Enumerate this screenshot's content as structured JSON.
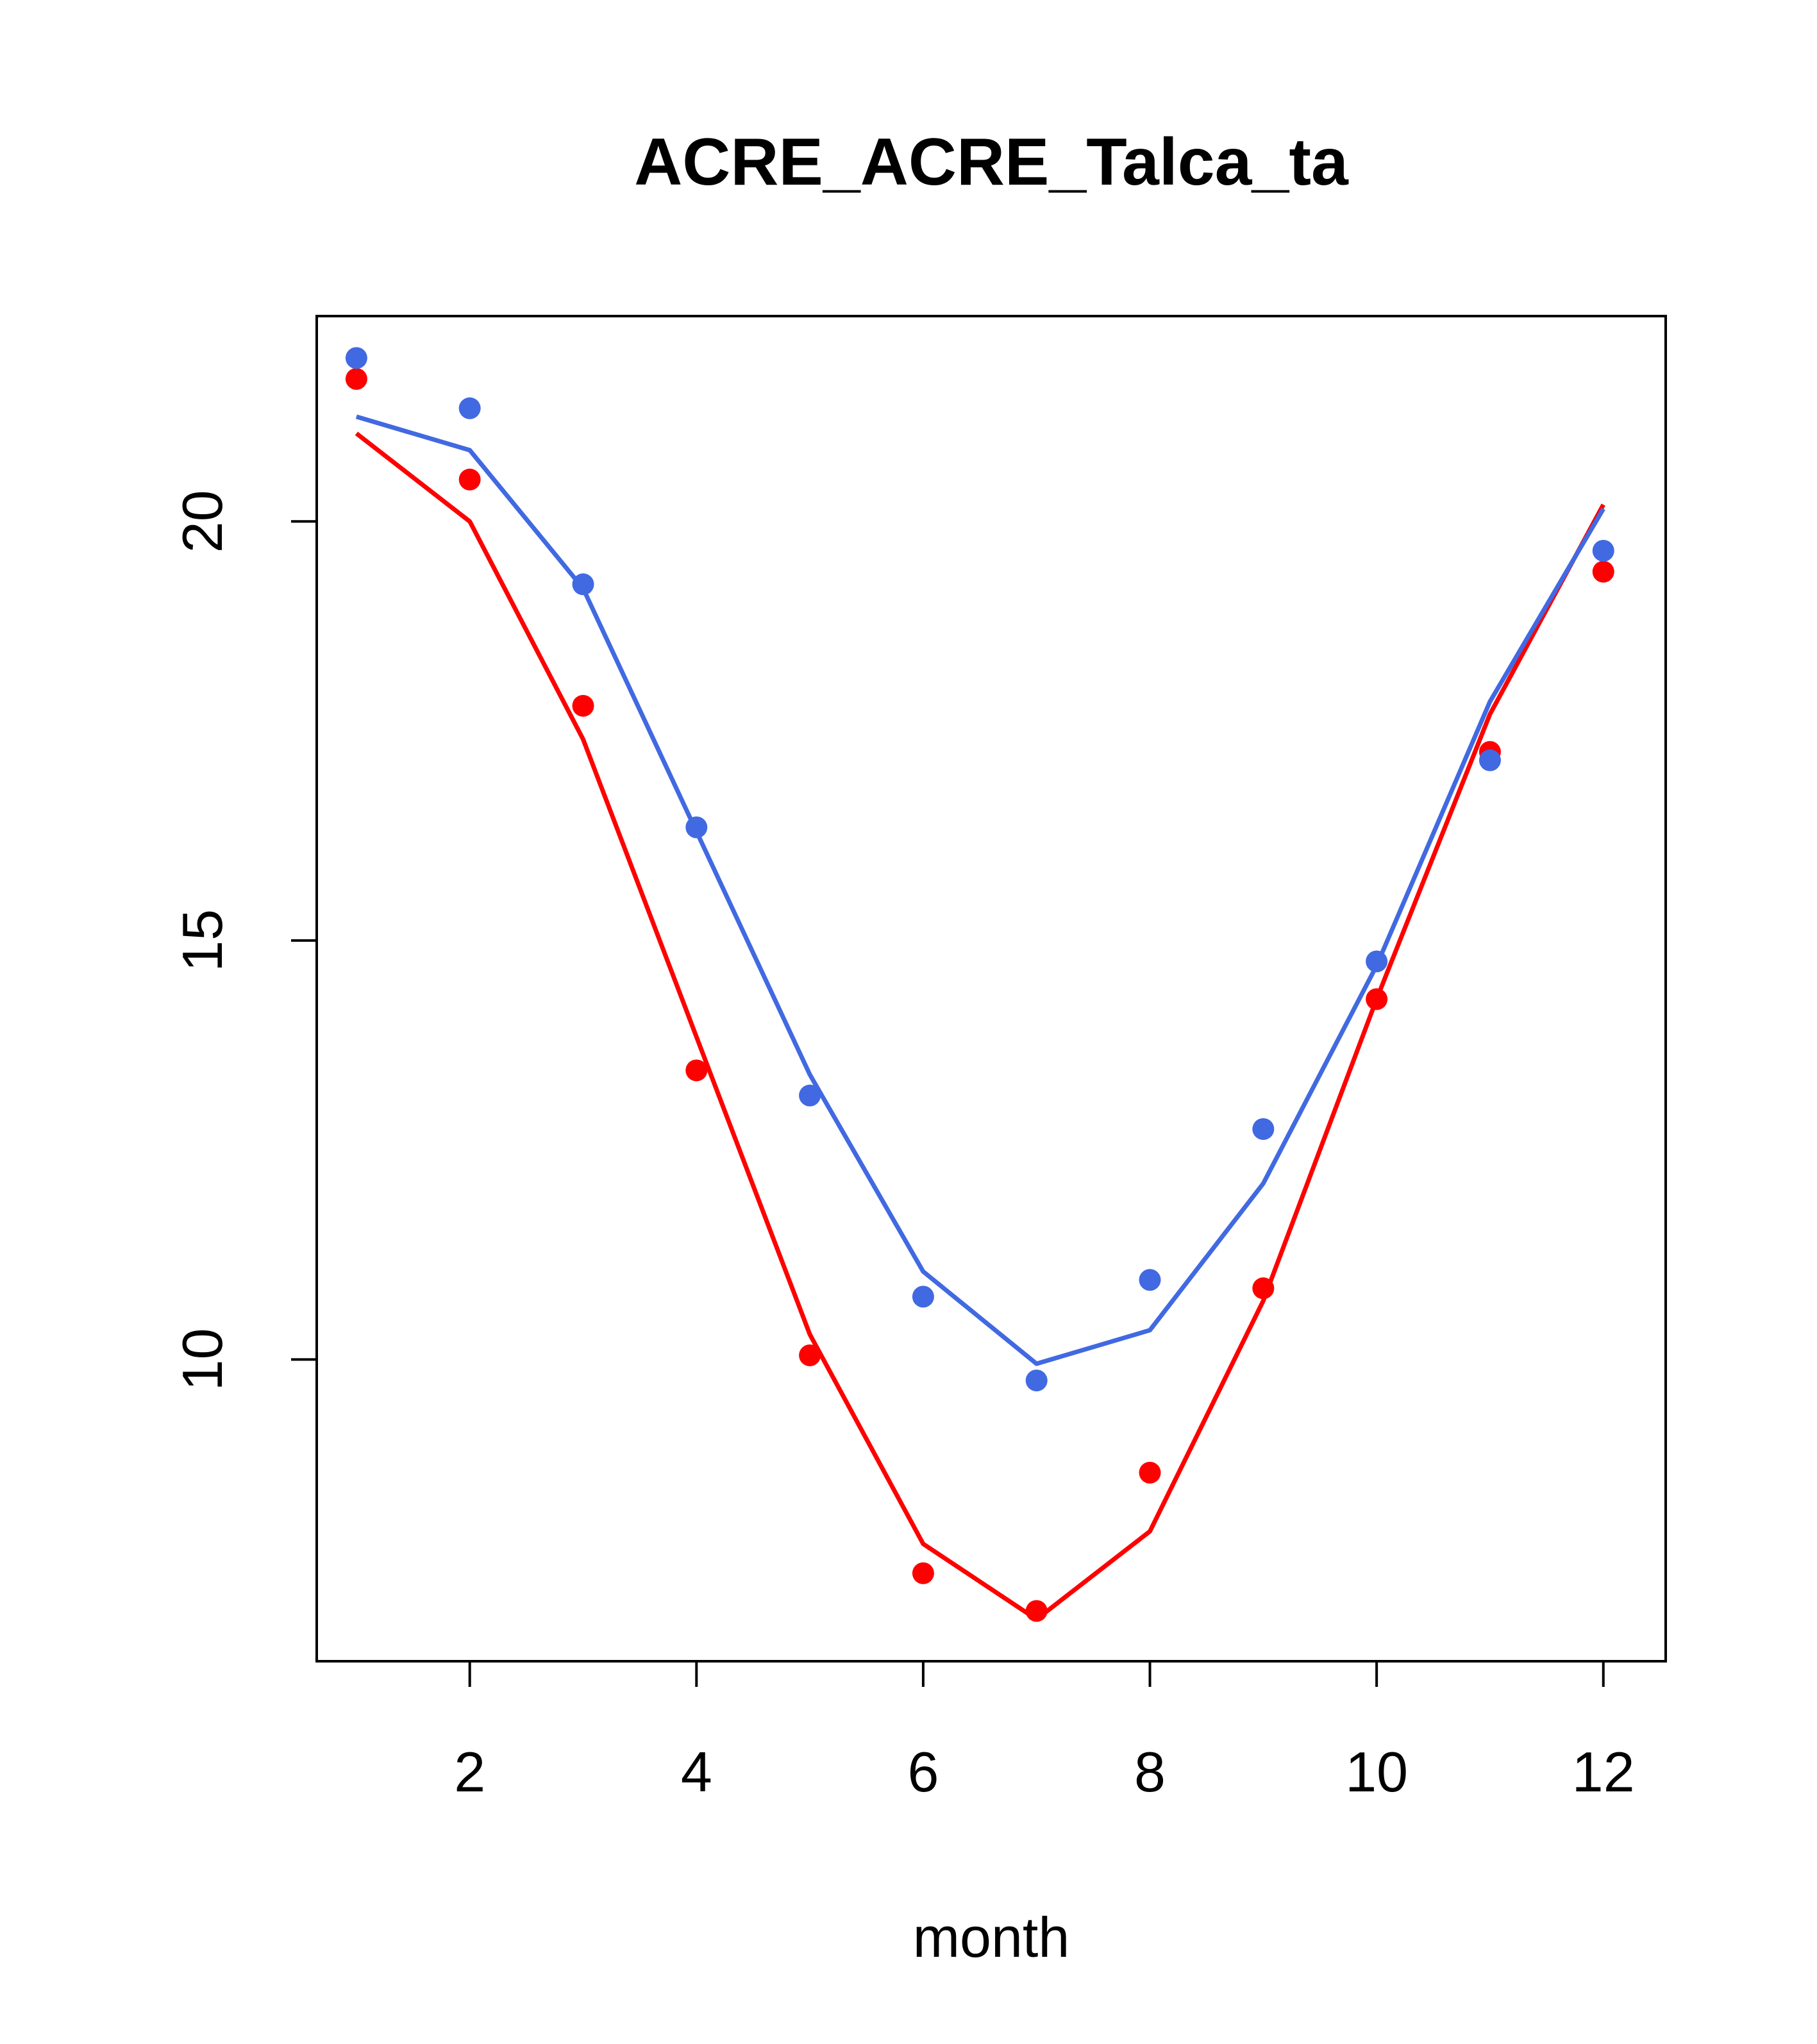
{
  "chart_data": {
    "type": "line",
    "title": "ACRE_ACRE_Talca_ta",
    "xlabel": "month",
    "ylabel": "",
    "xlim": [
      0.65,
      12.55
    ],
    "ylim": [
      6.4,
      22.45
    ],
    "xticks": [
      2,
      4,
      6,
      8,
      10,
      12
    ],
    "yticks": [
      10,
      15,
      20
    ],
    "grid": false,
    "legend": "none",
    "series": [
      {
        "color": "#ff0000",
        "points": [
          21.7,
          20.5,
          17.8,
          13.45,
          10.05,
          7.45,
          7.0,
          8.65,
          10.85,
          14.3,
          17.25,
          19.4
        ],
        "line": [
          21.05,
          20.0,
          17.4,
          13.85,
          10.3,
          7.8,
          6.9,
          7.95,
          10.7,
          14.3,
          17.7,
          20.2
        ]
      },
      {
        "color": "#4169e1",
        "points": [
          21.95,
          21.35,
          19.25,
          16.35,
          13.15,
          10.75,
          9.75,
          10.95,
          12.75,
          14.75,
          17.15,
          19.65
        ],
        "line": [
          21.25,
          20.85,
          19.2,
          16.3,
          13.4,
          11.05,
          9.95,
          10.35,
          12.1,
          14.7,
          17.85,
          20.15
        ]
      }
    ]
  }
}
